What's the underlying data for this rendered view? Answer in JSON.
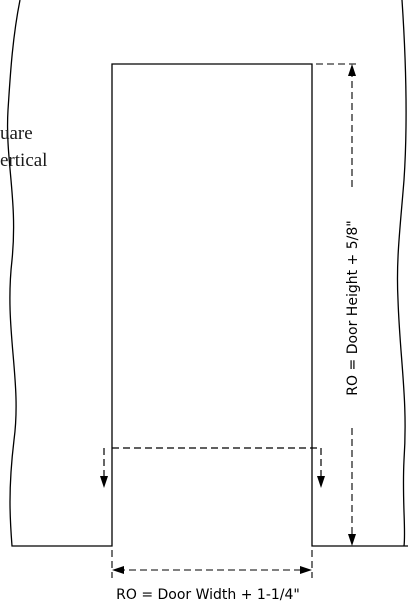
{
  "wall_note": {
    "line1": "uare",
    "line2": "ertical"
  },
  "dimensions": {
    "height_label": "RO = Door Height + 5/8\"",
    "width_label": "RO = Door Width + 1-1/4\""
  },
  "colors": {
    "line": "#000000",
    "background": "#ffffff"
  }
}
